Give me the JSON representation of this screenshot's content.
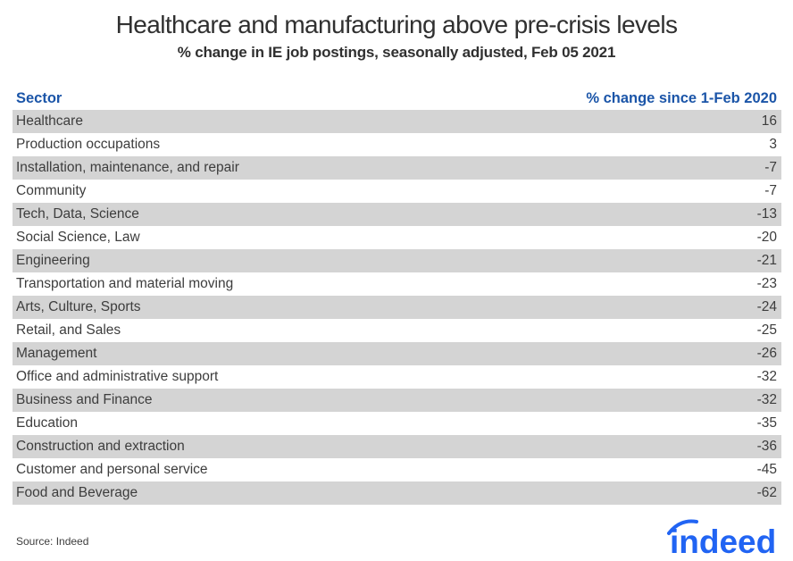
{
  "title": "Healthcare and manufacturing above pre-crisis levels",
  "subtitle": "% change in IE job postings, seasonally adjusted, Feb 05 2021",
  "table": {
    "col_sector": "Sector",
    "col_value": "% change since 1-Feb 2020",
    "rows": [
      {
        "sector": "Healthcare",
        "value": "16"
      },
      {
        "sector": "Production occupations",
        "value": "3"
      },
      {
        "sector": "Installation, maintenance, and repair",
        "value": "-7"
      },
      {
        "sector": "Community",
        "value": "-7"
      },
      {
        "sector": "Tech, Data, Science",
        "value": "-13"
      },
      {
        "sector": "Social Science, Law",
        "value": "-20"
      },
      {
        "sector": "Engineering",
        "value": "-21"
      },
      {
        "sector": "Transportation and material moving",
        "value": "-23"
      },
      {
        "sector": "Arts, Culture, Sports",
        "value": "-24"
      },
      {
        "sector": "Retail, and Sales",
        "value": "-25"
      },
      {
        "sector": "Management",
        "value": "-26"
      },
      {
        "sector": "Office and administrative support",
        "value": "-32"
      },
      {
        "sector": "Business and Finance",
        "value": "-32"
      },
      {
        "sector": "Education",
        "value": "-35"
      },
      {
        "sector": "Construction and extraction",
        "value": "-36"
      },
      {
        "sector": "Customer and personal service",
        "value": "-45"
      },
      {
        "sector": "Food and Beverage",
        "value": "-62"
      }
    ]
  },
  "footer": {
    "source": "Source: Indeed",
    "logo_text": "indeed"
  },
  "colors": {
    "header_blue": "#1b55a8",
    "logo_blue": "#2164f3",
    "row_shade": "#d4d4d4",
    "text_dark": "#3d3d3d"
  },
  "chart_data": {
    "type": "table",
    "title": "Healthcare and manufacturing above pre-crisis levels",
    "subtitle": "% change in IE job postings, seasonally adjusted, Feb 05 2021",
    "columns": [
      "Sector",
      "% change since 1-Feb 2020"
    ],
    "categories": [
      "Healthcare",
      "Production occupations",
      "Installation, maintenance, and repair",
      "Community",
      "Tech, Data, Science",
      "Social Science, Law",
      "Engineering",
      "Transportation and material moving",
      "Arts, Culture, Sports",
      "Retail, and Sales",
      "Management",
      "Office and administrative support",
      "Business and Finance",
      "Education",
      "Construction and extraction",
      "Customer and personal service",
      "Food and Beverage"
    ],
    "values": [
      16,
      3,
      -7,
      -7,
      -13,
      -20,
      -21,
      -23,
      -24,
      -25,
      -26,
      -32,
      -32,
      -35,
      -36,
      -45,
      -62
    ],
    "source": "Indeed",
    "layout": "alternating row shading, values right-aligned, no gridlines"
  }
}
